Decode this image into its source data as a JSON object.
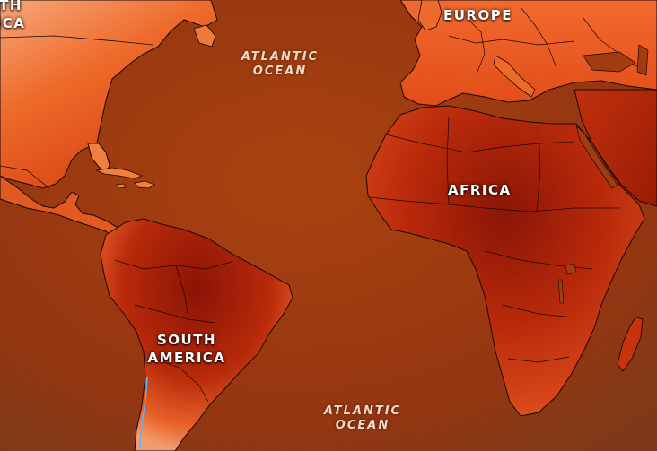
{
  "labels": {
    "north_america": {
      "line1": "TH",
      "line2": "ICA"
    },
    "europe": "EUROPE",
    "africa": "AFRICA",
    "south_america": {
      "line1": "SOUTH",
      "line2": "AMERICA"
    },
    "atlantic_north": {
      "line1": "ATLANTIC",
      "line2": "OCEAN"
    },
    "atlantic_south": {
      "line1": "ATLANTIC",
      "line2": "OCEAN"
    }
  },
  "colors": {
    "ocean": "#9a3a10",
    "land_hot": "#8e1706",
    "land_warm": "#c8320c",
    "land_mild": "#ee6a2a",
    "land_cool": "#f7a77c",
    "border": "#1a0804",
    "river": "#5bb4ff"
  }
}
